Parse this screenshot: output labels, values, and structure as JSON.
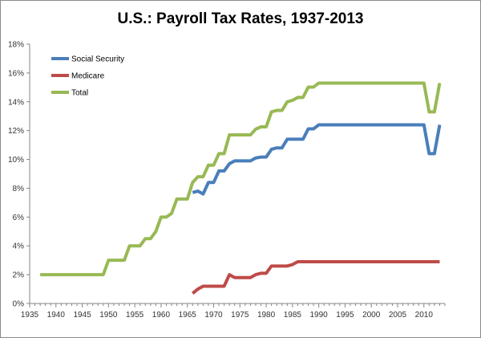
{
  "chart_data": {
    "type": "line",
    "title": "U.S.: Payroll Tax Rates, 1937-2013",
    "xlabel": "",
    "ylabel": "",
    "xlim": [
      1935,
      2014
    ],
    "ylim": [
      0,
      18
    ],
    "x_ticks": [
      1935,
      1940,
      1945,
      1950,
      1955,
      1960,
      1965,
      1970,
      1975,
      1980,
      1985,
      1990,
      1995,
      2000,
      2005,
      2010
    ],
    "y_ticks": [
      0,
      2,
      4,
      6,
      8,
      10,
      12,
      14,
      16,
      18
    ],
    "y_tick_labels": [
      "0%",
      "2%",
      "4%",
      "6%",
      "8%",
      "10%",
      "12%",
      "14%",
      "16%",
      "18%"
    ],
    "grid": false,
    "legend_position": "top-left",
    "series": [
      {
        "name": "Social Security",
        "color": "#4a7ebb",
        "x": [
          1966,
          1967,
          1968,
          1969,
          1970,
          1971,
          1972,
          1973,
          1974,
          1975,
          1976,
          1977,
          1978,
          1979,
          1980,
          1981,
          1982,
          1983,
          1984,
          1985,
          1986,
          1987,
          1988,
          1989,
          1990,
          1991,
          2010,
          2011,
          2012,
          2013
        ],
        "values": [
          7.7,
          7.8,
          7.6,
          8.4,
          8.4,
          9.2,
          9.2,
          9.7,
          9.9,
          9.9,
          9.9,
          9.9,
          10.1,
          10.16,
          10.16,
          10.7,
          10.8,
          10.8,
          11.4,
          11.4,
          11.4,
          11.4,
          12.12,
          12.12,
          12.4,
          12.4,
          12.4,
          10.4,
          10.4,
          12.4
        ]
      },
      {
        "name": "Medicare",
        "color": "#be4b48",
        "x": [
          1966,
          1967,
          1968,
          1969,
          1970,
          1971,
          1972,
          1973,
          1974,
          1975,
          1976,
          1977,
          1978,
          1979,
          1980,
          1981,
          1982,
          1983,
          1984,
          1985,
          1986,
          1987,
          2013
        ],
        "values": [
          0.7,
          1.0,
          1.2,
          1.2,
          1.2,
          1.2,
          1.2,
          2.0,
          1.8,
          1.8,
          1.8,
          1.8,
          2.0,
          2.1,
          2.1,
          2.6,
          2.6,
          2.6,
          2.6,
          2.7,
          2.9,
          2.9,
          2.9
        ]
      },
      {
        "name": "Total",
        "color": "#98b954",
        "x": [
          1937,
          1949,
          1950,
          1951,
          1953,
          1954,
          1956,
          1957,
          1958,
          1959,
          1960,
          1961,
          1962,
          1963,
          1965,
          1966,
          1967,
          1968,
          1969,
          1970,
          1971,
          1972,
          1973,
          1974,
          1977,
          1978,
          1979,
          1980,
          1981,
          1982,
          1983,
          1984,
          1985,
          1986,
          1987,
          1988,
          1989,
          1990,
          2010,
          2011,
          2012,
          2013
        ],
        "values": [
          2.0,
          2.0,
          3.0,
          3.0,
          3.0,
          4.0,
          4.0,
          4.5,
          4.5,
          5.0,
          6.0,
          6.0,
          6.25,
          7.25,
          7.25,
          8.4,
          8.8,
          8.8,
          9.6,
          9.6,
          10.4,
          10.4,
          11.7,
          11.7,
          11.7,
          12.1,
          12.26,
          12.26,
          13.3,
          13.4,
          13.4,
          14.0,
          14.1,
          14.3,
          14.3,
          15.02,
          15.02,
          15.3,
          15.3,
          13.3,
          13.3,
          15.3
        ]
      }
    ]
  }
}
